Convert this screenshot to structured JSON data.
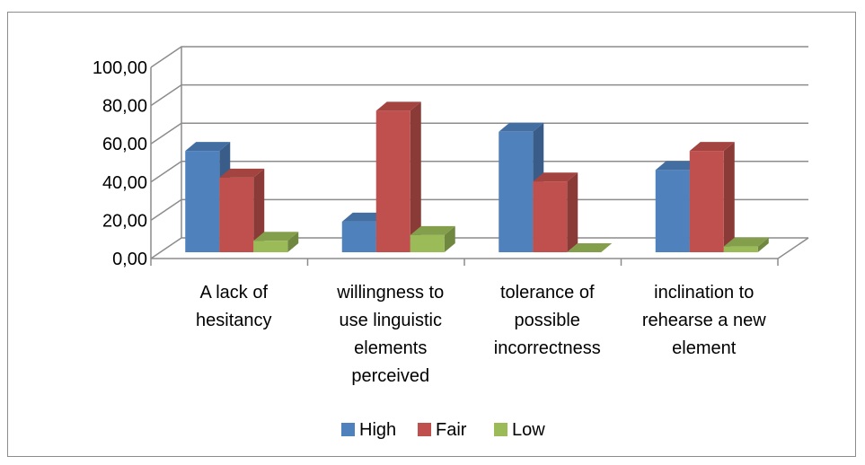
{
  "chart_data": {
    "type": "bar",
    "style": "3d-clustered-column",
    "categories": [
      [
        "A lack of",
        "hesitancy"
      ],
      [
        "willingness to",
        "use linguistic",
        "elements",
        "perceived"
      ],
      [
        "tolerance of",
        "possible",
        "incorrectness"
      ],
      [
        "inclination to",
        "rehearse a new",
        "element"
      ]
    ],
    "series": [
      {
        "name": "High",
        "values": [
          53,
          16,
          63,
          43
        ],
        "color": "#4f81bd"
      },
      {
        "name": "Fair",
        "values": [
          39,
          74,
          37,
          53
        ],
        "color": "#c0504d"
      },
      {
        "name": "Low",
        "values": [
          6,
          9,
          0,
          3
        ],
        "color": "#9bbb59"
      }
    ],
    "ylim": [
      0,
      100
    ],
    "y_ticks": [
      "0,00",
      "20,00",
      "40,00",
      "60,00",
      "80,00",
      "100,00"
    ],
    "grid": true,
    "legend_position": "bottom"
  }
}
